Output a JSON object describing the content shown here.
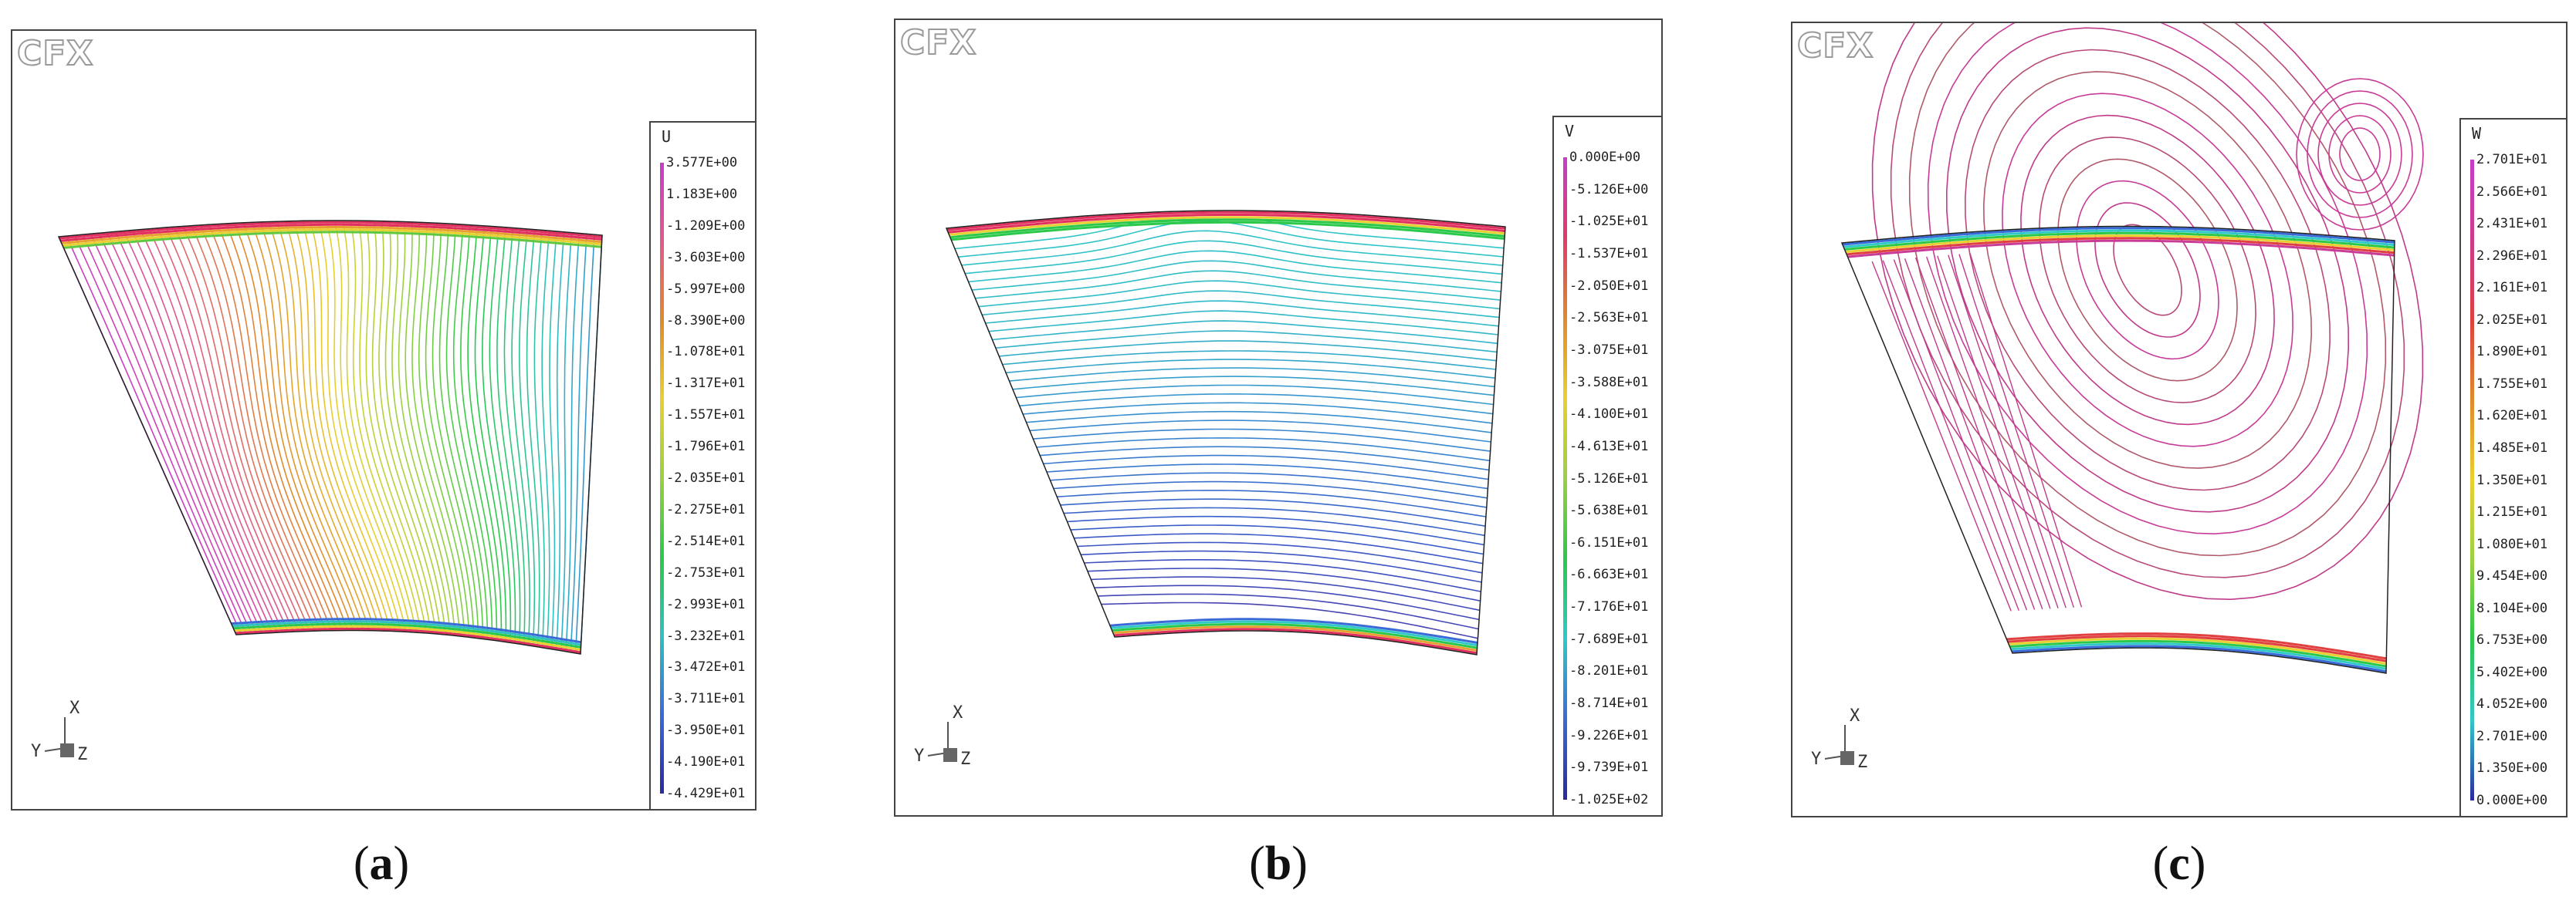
{
  "logo_text": "CFX",
  "triad": {
    "x": "X",
    "y": "Y",
    "z": "Z"
  },
  "panels": [
    {
      "id": "a",
      "variable": "U",
      "caption_letter": "a",
      "gradient": [
        "#c83cc8",
        "#e05a8a",
        "#e08a2a",
        "#e8d030",
        "#9ad040",
        "#2bc84a",
        "#30c0c0",
        "#3a6ad8",
        "#2a2aa0"
      ],
      "levels": [
        "3.577E+00",
        "1.183E+00",
        "-1.209E+00",
        "-3.603E+00",
        "-5.997E+00",
        "-8.390E+00",
        "-1.078E+01",
        "-1.317E+01",
        "-1.557E+01",
        "-1.796E+01",
        "-2.035E+01",
        "-2.275E+01",
        "-2.514E+01",
        "-2.753E+01",
        "-2.993E+01",
        "-3.232E+01",
        "-3.472E+01",
        "-3.711E+01",
        "-3.950E+01",
        "-4.190E+01",
        "-4.429E+01"
      ]
    },
    {
      "id": "b",
      "variable": "V",
      "caption_letter": "b",
      "gradient": [
        "#c83cc8",
        "#e03a6a",
        "#e08a2a",
        "#e8d030",
        "#9ad040",
        "#2bc84a",
        "#30c8c8",
        "#3a6ad8",
        "#2a2aa0"
      ],
      "levels": [
        "0.000E+00",
        "-5.126E+00",
        "-1.025E+01",
        "-1.537E+01",
        "-2.050E+01",
        "-2.563E+01",
        "-3.075E+01",
        "-3.588E+01",
        "-4.100E+01",
        "-4.613E+01",
        "-5.126E+01",
        "-5.638E+01",
        "-6.151E+01",
        "-6.663E+01",
        "-7.176E+01",
        "-7.689E+01",
        "-8.201E+01",
        "-8.714E+01",
        "-9.226E+01",
        "-9.739E+01",
        "-1.025E+02"
      ]
    },
    {
      "id": "c",
      "variable": "W",
      "caption_letter": "c",
      "gradient": [
        "#c83cc8",
        "#d03a8a",
        "#e04040",
        "#e08a2a",
        "#e8d030",
        "#9ad040",
        "#2bc84a",
        "#30c8c8",
        "#2a2aa0"
      ],
      "levels": [
        "2.701E+01",
        "2.566E+01",
        "2.431E+01",
        "2.296E+01",
        "2.161E+01",
        "2.025E+01",
        "1.890E+01",
        "1.755E+01",
        "1.620E+01",
        "1.485E+01",
        "1.350E+01",
        "1.215E+01",
        "1.080E+01",
        "9.454E+00",
        "8.104E+00",
        "6.753E+00",
        "5.402E+00",
        "4.052E+00",
        "2.701E+00",
        "1.350E+00",
        "0.000E+00"
      ]
    }
  ]
}
